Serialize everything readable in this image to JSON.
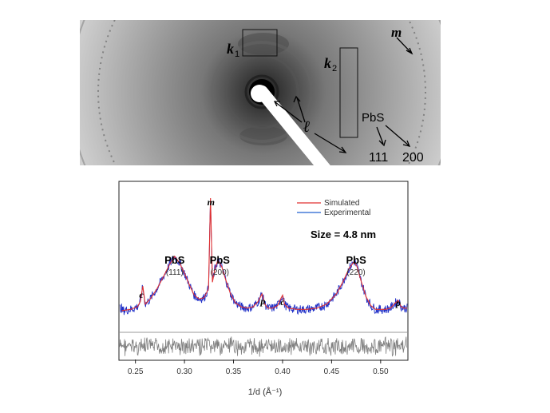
{
  "diffraction": {
    "labels": {
      "k1": "k",
      "k1_sub": "1",
      "k2": "k",
      "k2_sub": "2",
      "m": "m",
      "l": "ℓ",
      "pbs": "PbS",
      "r111": "111",
      "r200": "200"
    }
  },
  "chart_data": {
    "type": "line",
    "xlabel": "1/d (Å⁻¹)",
    "x_ticks": [
      "0.25",
      "0.30",
      "0.35",
      "0.40",
      "0.45",
      "0.50"
    ],
    "xlim": [
      0.234,
      0.527
    ],
    "legend": {
      "placement": "top-right",
      "entries": [
        "Simulated",
        "Experimental"
      ]
    },
    "size_annotation": "Size = 4.8 nm",
    "peak_labels": [
      {
        "text": "PbS",
        "sub": "(111)",
        "x": 0.29
      },
      {
        "text": "PbS",
        "sub": "(200)",
        "x": 0.336
      },
      {
        "text": "PbS",
        "sub": "(220)",
        "x": 0.475
      }
    ],
    "phase_labels": [
      {
        "text": "c",
        "x": 0.256
      },
      {
        "text": "m",
        "x": 0.327
      },
      {
        "text": "p",
        "x": 0.38
      },
      {
        "text": "c",
        "x": 0.4
      },
      {
        "text": "p",
        "x": 0.518
      }
    ],
    "series": [
      {
        "name": "Simulated",
        "color": "#e03030",
        "x": [
          0.236,
          0.245,
          0.252,
          0.255,
          0.2575,
          0.26,
          0.265,
          0.272,
          0.279,
          0.285,
          0.29,
          0.295,
          0.3,
          0.305,
          0.31,
          0.315,
          0.32,
          0.3245,
          0.3265,
          0.3285,
          0.331,
          0.334,
          0.338,
          0.342,
          0.347,
          0.352,
          0.358,
          0.364,
          0.37,
          0.375,
          0.379,
          0.382,
          0.385,
          0.39,
          0.395,
          0.398,
          0.4,
          0.402,
          0.406,
          0.415,
          0.425,
          0.435,
          0.445,
          0.455,
          0.462,
          0.468,
          0.473,
          0.476,
          0.48,
          0.485,
          0.49,
          0.495,
          0.5,
          0.505,
          0.51,
          0.515,
          0.518,
          0.521,
          0.524,
          0.527
        ],
        "y": [
          0.13,
          0.14,
          0.16,
          0.2,
          0.32,
          0.18,
          0.22,
          0.3,
          0.4,
          0.49,
          0.55,
          0.5,
          0.42,
          0.33,
          0.25,
          0.22,
          0.23,
          0.3,
          1.0,
          0.35,
          0.45,
          0.52,
          0.47,
          0.37,
          0.26,
          0.19,
          0.16,
          0.15,
          0.16,
          0.2,
          0.26,
          0.18,
          0.15,
          0.15,
          0.17,
          0.22,
          0.25,
          0.18,
          0.15,
          0.14,
          0.14,
          0.15,
          0.18,
          0.26,
          0.36,
          0.46,
          0.51,
          0.47,
          0.36,
          0.24,
          0.17,
          0.14,
          0.14,
          0.14,
          0.15,
          0.19,
          0.21,
          0.16,
          0.15,
          0.15
        ]
      },
      {
        "name": "Experimental",
        "color": "#2030c8",
        "x": [
          0.236,
          0.245,
          0.252,
          0.255,
          0.2575,
          0.26,
          0.265,
          0.272,
          0.279,
          0.285,
          0.29,
          0.295,
          0.3,
          0.305,
          0.31,
          0.315,
          0.32,
          0.3245,
          0.3265,
          0.3285,
          0.331,
          0.334,
          0.338,
          0.342,
          0.347,
          0.352,
          0.358,
          0.364,
          0.37,
          0.375,
          0.379,
          0.382,
          0.385,
          0.39,
          0.395,
          0.398,
          0.4,
          0.402,
          0.406,
          0.415,
          0.425,
          0.435,
          0.445,
          0.455,
          0.462,
          0.468,
          0.473,
          0.476,
          0.48,
          0.485,
          0.49,
          0.495,
          0.5,
          0.505,
          0.51,
          0.515,
          0.518,
          0.521,
          0.524,
          0.527
        ],
        "y": [
          0.13,
          0.14,
          0.16,
          0.2,
          0.32,
          0.18,
          0.22,
          0.3,
          0.4,
          0.49,
          0.55,
          0.5,
          0.42,
          0.33,
          0.25,
          0.22,
          0.23,
          0.3,
          1.0,
          0.35,
          0.45,
          0.52,
          0.47,
          0.37,
          0.26,
          0.19,
          0.16,
          0.15,
          0.16,
          0.2,
          0.26,
          0.18,
          0.15,
          0.15,
          0.17,
          0.22,
          0.25,
          0.18,
          0.15,
          0.14,
          0.14,
          0.15,
          0.18,
          0.26,
          0.36,
          0.46,
          0.51,
          0.47,
          0.36,
          0.24,
          0.17,
          0.14,
          0.14,
          0.14,
          0.15,
          0.19,
          0.21,
          0.16,
          0.15,
          0.15
        ]
      },
      {
        "name": "",
        "color": "#808080",
        "x": [
          0.236,
          0.527
        ],
        "y": [
          0.0,
          0.0
        ]
      }
    ]
  }
}
